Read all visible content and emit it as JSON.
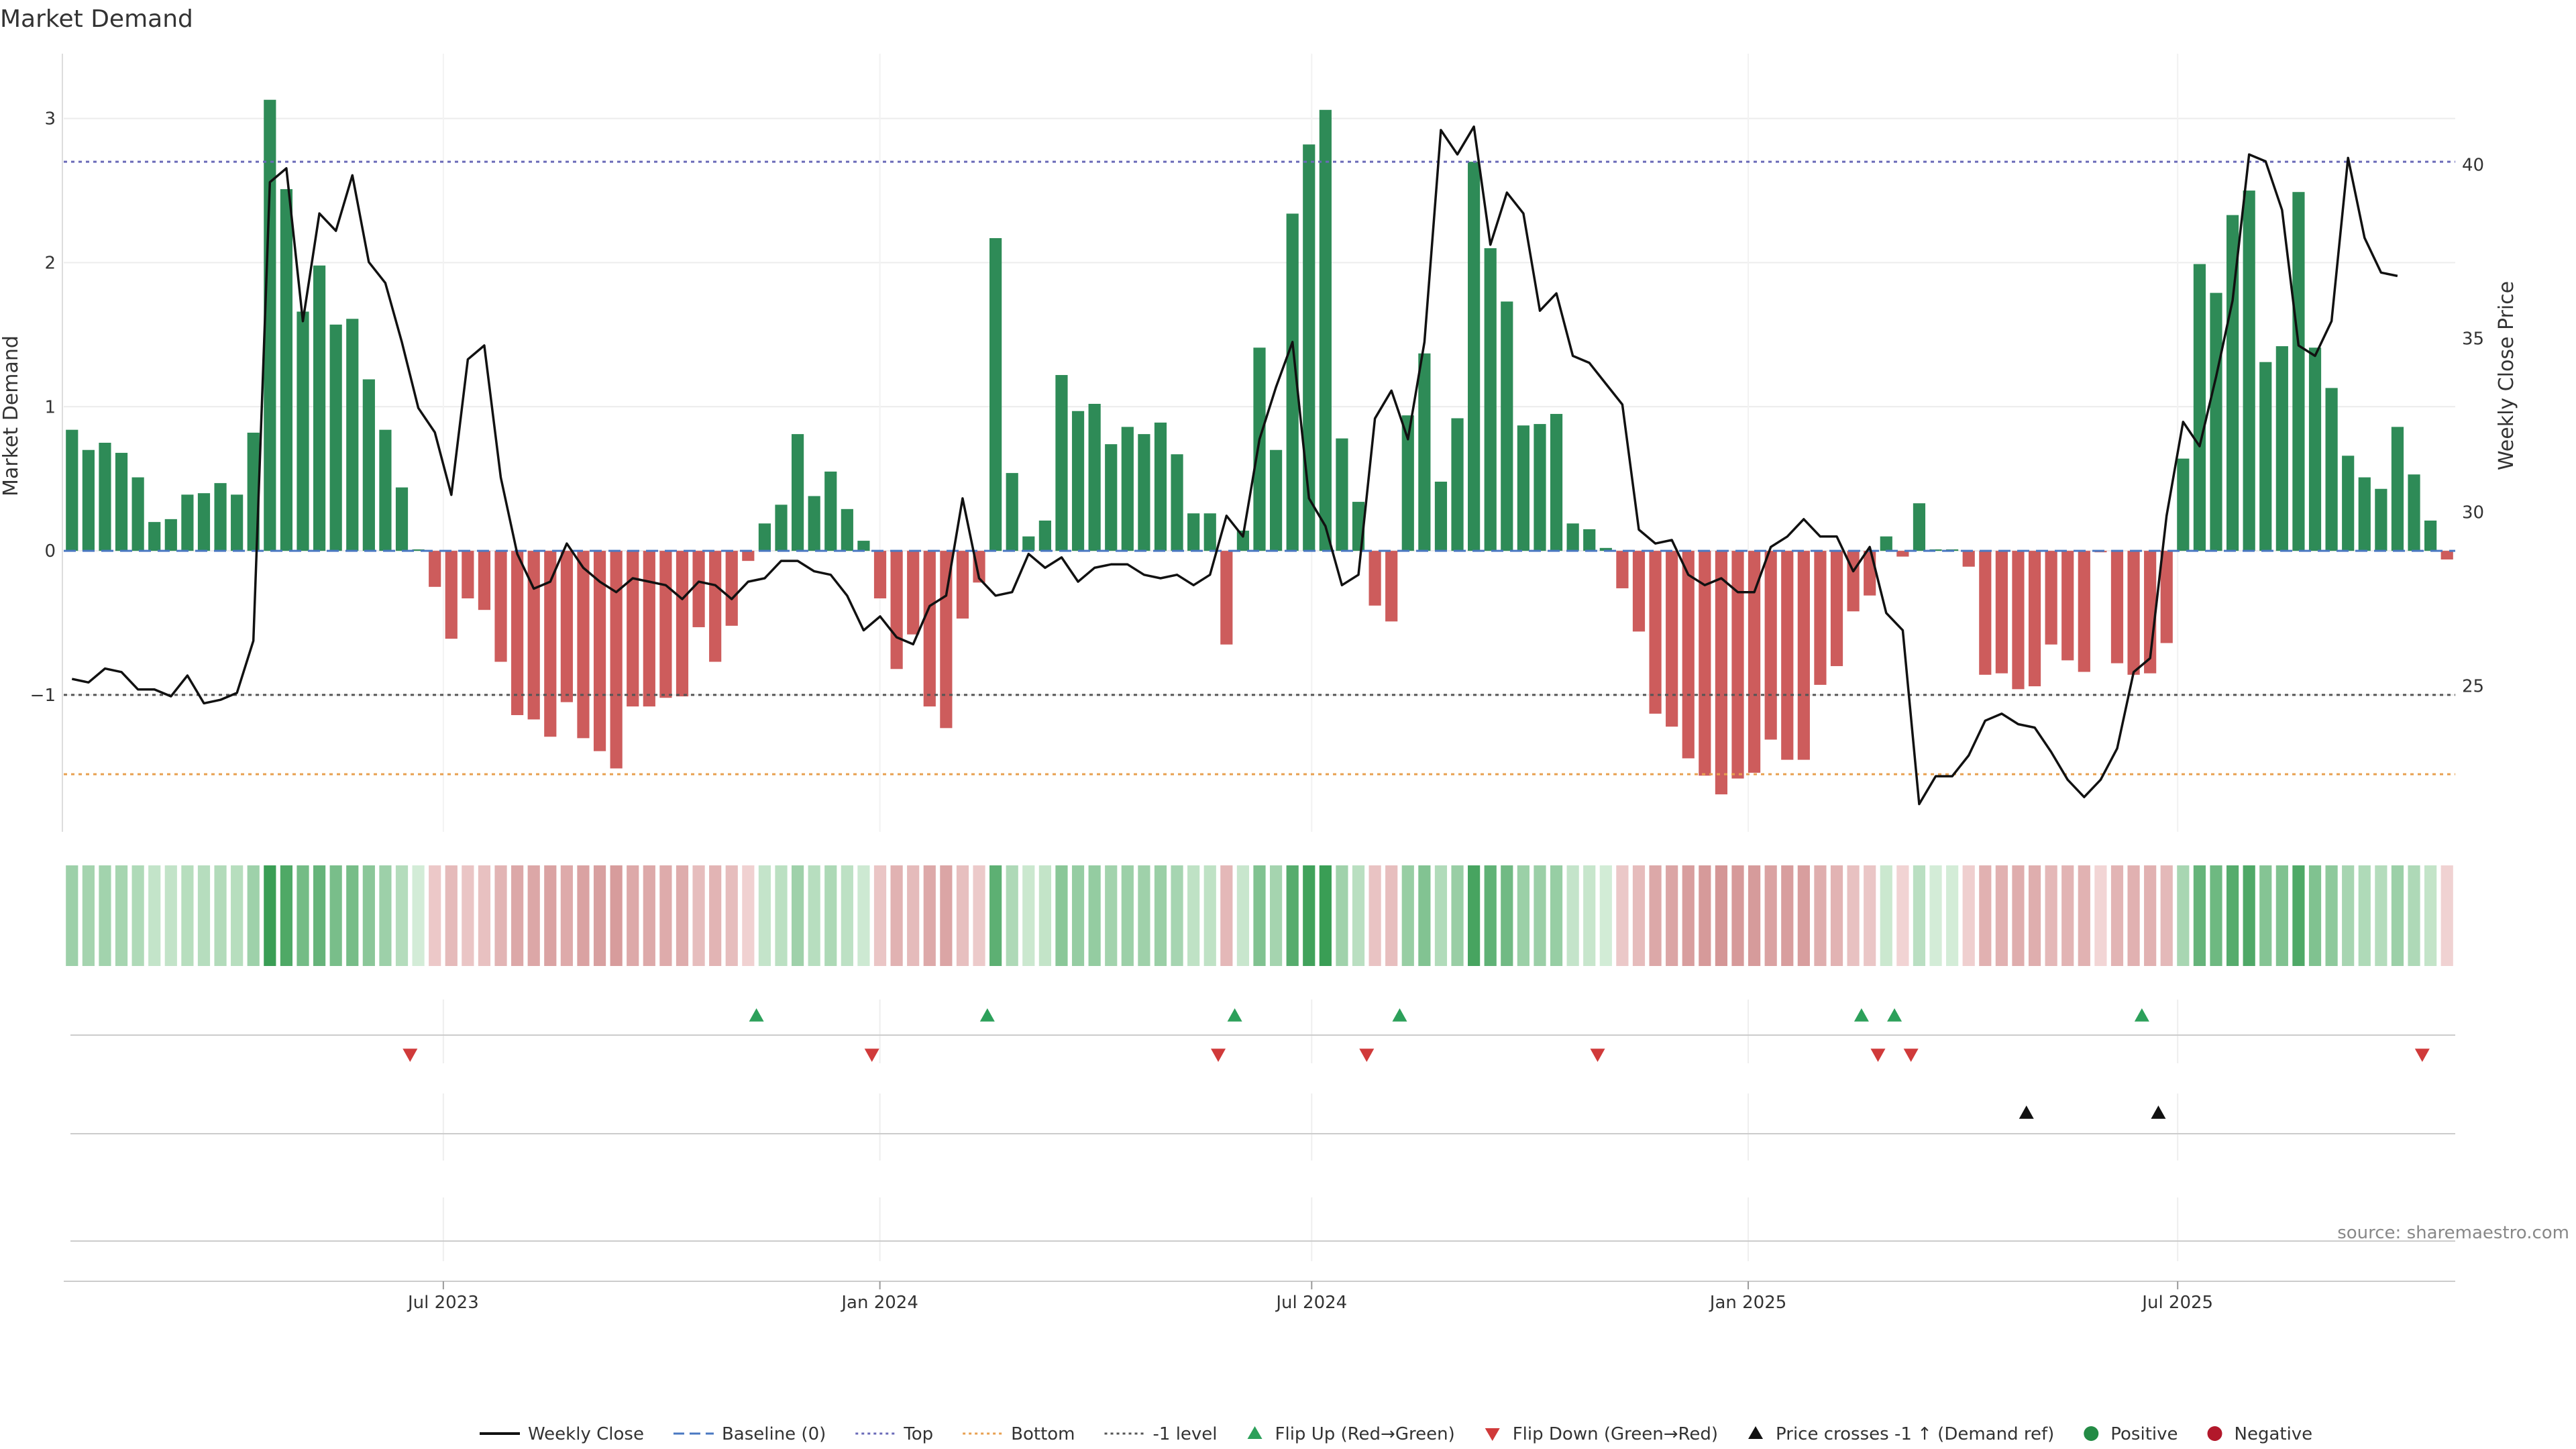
{
  "chart_data": {
    "type": "bar",
    "title": "Market Demand",
    "source": "source: sharemaestro.com",
    "y_left": {
      "label": "Market Demand",
      "range": [
        -1.95,
        3.45
      ],
      "ticks": [
        -1,
        0,
        1,
        2,
        3
      ]
    },
    "y_right": {
      "label": "Weekly Close Price",
      "range": [
        20.8,
        43.2
      ],
      "ticks": [
        25,
        30,
        35,
        40
      ]
    },
    "x_axis": {
      "start": "2023-01-22",
      "end": "2025-10-26",
      "ticks": [
        {
          "date": "2023-07-01",
          "label": "Jul 2023"
        },
        {
          "date": "2024-01-01",
          "label": "Jan 2024"
        },
        {
          "date": "2024-07-01",
          "label": "Jul 2024"
        },
        {
          "date": "2025-01-01",
          "label": "Jan 2025"
        },
        {
          "date": "2025-07-01",
          "label": "Jul 2025"
        }
      ]
    },
    "reference_lines": {
      "baseline": 0,
      "top": 2.7,
      "bottom": -1.55,
      "minus_one_level": -1
    },
    "series": [
      {
        "name": "Weekly Close",
        "type": "line",
        "axis": "right",
        "values": [
          25.2,
          25.1,
          25.5,
          25.4,
          24.9,
          24.9,
          24.7,
          25.3,
          24.5,
          24.6,
          24.8,
          26.3,
          39.5,
          39.9,
          35.5,
          38.6,
          38.1,
          39.7,
          37.2,
          36.6,
          34.9,
          33.0,
          32.3,
          30.5,
          34.4,
          34.8,
          31.0,
          28.8,
          27.8,
          28.0,
          29.1,
          28.4,
          28.0,
          27.7,
          28.1,
          28.0,
          27.9,
          27.5,
          28.0,
          27.9,
          27.5,
          28.0,
          28.1,
          28.6,
          28.6,
          28.3,
          28.2,
          27.6,
          26.6,
          27.0,
          26.4,
          26.2,
          27.3,
          27.6,
          30.4,
          28.1,
          27.6,
          27.7,
          28.8,
          28.4,
          28.7,
          28.0,
          28.4,
          28.5,
          28.5,
          28.2,
          28.1,
          28.2,
          27.9,
          28.2,
          29.9,
          29.3,
          32.1,
          33.6,
          34.9,
          30.4,
          29.6,
          27.9,
          28.2,
          32.7,
          33.5,
          32.1,
          34.9,
          41.0,
          40.3,
          41.1,
          37.7,
          39.2,
          38.6,
          35.8,
          36.3,
          34.5,
          34.3,
          33.7,
          33.1,
          29.5,
          29.1,
          29.2,
          28.2,
          27.9,
          28.1,
          27.7,
          27.7,
          29.0,
          29.3,
          29.8,
          29.3,
          29.3,
          28.3,
          29.0,
          27.1,
          26.6,
          21.6,
          22.4,
          22.4,
          23.0,
          24.0,
          24.2,
          23.9,
          23.8,
          23.1,
          22.3,
          21.8,
          22.3,
          23.2,
          25.4,
          25.8,
          29.9,
          32.6,
          31.9,
          33.9,
          36.1,
          40.3,
          40.1,
          38.7,
          34.8,
          34.5,
          35.5,
          40.2,
          37.9,
          36.9,
          36.8
        ]
      },
      {
        "name": "Market Demand",
        "type": "bar",
        "axis": "left",
        "values": [
          0.84,
          0.7,
          0.75,
          0.68,
          0.51,
          0.2,
          0.22,
          0.39,
          0.4,
          0.47,
          0.39,
          0.82,
          3.13,
          2.51,
          1.66,
          1.98,
          1.57,
          1.61,
          1.19,
          0.84,
          0.44,
          0.01,
          -0.25,
          -0.61,
          -0.33,
          -0.41,
          -0.77,
          -1.14,
          -1.17,
          -1.29,
          -1.05,
          -1.3,
          -1.39,
          -1.51,
          -1.08,
          -1.08,
          -1.02,
          -1.01,
          -0.53,
          -0.77,
          -0.52,
          -0.07,
          0.19,
          0.32,
          0.81,
          0.38,
          0.55,
          0.29,
          0.07,
          -0.33,
          -0.82,
          -0.58,
          -1.08,
          -1.23,
          -0.47,
          -0.22,
          2.17,
          0.54,
          0.1,
          0.21,
          1.22,
          0.97,
          1.02,
          0.74,
          0.86,
          0.81,
          0.89,
          0.67,
          0.26,
          0.26,
          -0.65,
          0.14,
          1.41,
          0.7,
          2.34,
          2.82,
          3.06,
          0.78,
          0.34,
          -0.38,
          -0.49,
          0.94,
          1.37,
          0.48,
          0.92,
          2.7,
          2.1,
          1.73,
          0.87,
          0.88,
          0.95,
          0.19,
          0.15,
          0.02,
          -0.26,
          -0.56,
          -1.13,
          -1.22,
          -1.44,
          -1.56,
          -1.69,
          -1.58,
          -1.54,
          -1.31,
          -1.45,
          -1.45,
          -0.93,
          -0.8,
          -0.42,
          -0.31,
          0.1,
          -0.04,
          0.33,
          0.01,
          0.01,
          -0.11,
          -0.86,
          -0.85,
          -0.96,
          -0.94,
          -0.65,
          -0.76,
          -0.84,
          -0.01,
          -0.78,
          -0.86,
          -0.85,
          -0.64,
          0.64,
          1.99,
          1.79,
          2.33,
          2.5,
          1.31,
          1.42,
          2.49,
          1.41,
          1.13,
          0.66,
          0.51,
          0.43,
          0.86,
          0.53,
          0.21,
          -0.06
        ]
      }
    ],
    "legend": [
      {
        "label": "Weekly Close",
        "marker": "line",
        "color": "#111111"
      },
      {
        "label": "Baseline (0)",
        "marker": "dash",
        "color": "#4a78c2"
      },
      {
        "label": "Top",
        "marker": "dotted",
        "color": "#6a6ab8"
      },
      {
        "label": "Bottom",
        "marker": "dotted",
        "color": "#e8a050"
      },
      {
        "label": "-1 level",
        "marker": "dotted",
        "color": "#555555"
      },
      {
        "label": "Flip Up (Red→Green)",
        "marker": "triangle-up",
        "color": "#2ca05a"
      },
      {
        "label": "Flip Down (Green→Red)",
        "marker": "triangle-down",
        "color": "#d03a3a"
      },
      {
        "label": "Price crosses -1 ↑ (Demand ref)",
        "marker": "triangle-up",
        "color": "#111111"
      },
      {
        "label": "Positive",
        "marker": "circle",
        "color": "#238b45"
      },
      {
        "label": "Negative",
        "marker": "circle",
        "color": "#b2182b"
      }
    ],
    "flip_up_weeks": [
      42,
      56,
      71,
      81,
      109,
      111,
      126
    ],
    "flip_down_weeks": [
      21,
      49,
      70,
      79,
      93,
      110,
      112,
      143
    ],
    "price_cross_weeks": [
      119,
      127
    ],
    "colors": {
      "positive_bar": "#2e8b57",
      "negative_bar": "#cd5c5c",
      "price_line": "#111111"
    }
  }
}
